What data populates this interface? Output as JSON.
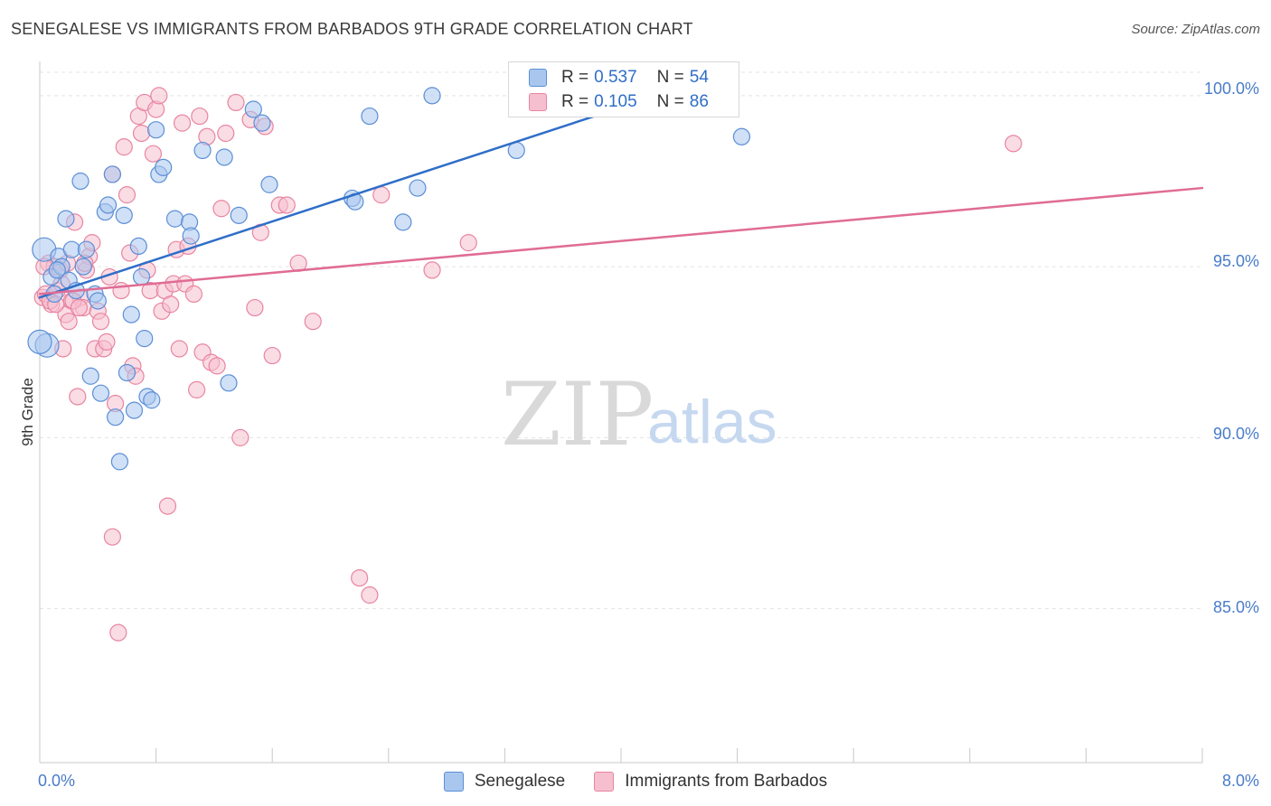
{
  "header": {
    "title": "SENEGALESE VS IMMIGRANTS FROM BARBADOS 9TH GRADE CORRELATION CHART",
    "source": "Source: ZipAtlas.com"
  },
  "watermark": {
    "zip": "ZIP",
    "atlas": "atlas"
  },
  "legend_top": [
    {
      "r_label": "R =",
      "r_value": "0.537",
      "n_label": "N =",
      "n_value": "54"
    },
    {
      "r_label": "R =",
      "r_value": "0.105",
      "n_label": "N =",
      "n_value": "86"
    }
  ],
  "legend_bottom": [
    "Senegalese",
    "Immigrants from Barbados"
  ],
  "colors": {
    "blue_fill": "#a9c7ee",
    "blue_stroke": "#5b8fd6",
    "blue_line": "#2f6ec8",
    "pink_fill": "#f6bfd0",
    "pink_stroke": "#e8859f",
    "pink_line": "#e06c95",
    "tick": "#4a7cc9",
    "grid": "#e3e3e3"
  },
  "chart_data": {
    "type": "scatter",
    "title": "SENEGALESE VS IMMIGRANTS FROM BARBADOS 9TH GRADE CORRELATION CHART",
    "xlabel": "",
    "ylabel": "9th Grade",
    "xlim": [
      0.0,
      8.0
    ],
    "ylim": [
      80.5,
      101.0
    ],
    "x_tick_labels": [
      {
        "value": 0.0,
        "label": "0.0%"
      },
      {
        "value": 8.0,
        "label": "8.0%"
      }
    ],
    "y_ticks": [
      {
        "value": 100.0,
        "label": "100.0%"
      },
      {
        "value": 95.0,
        "label": "95.0%"
      },
      {
        "value": 90.0,
        "label": "90.0%"
      },
      {
        "value": 85.0,
        "label": "85.0%"
      }
    ],
    "series": [
      {
        "name": "Senegalese",
        "r": 0.537,
        "n": 54,
        "trend": {
          "x0": 0.0,
          "y0": 94.1,
          "x1": 4.25,
          "y1": 100.0
        },
        "points": [
          [
            0.03,
            95.5
          ],
          [
            0.05,
            92.7
          ],
          [
            0.08,
            94.7
          ],
          [
            0.1,
            94.2
          ],
          [
            0.13,
            95.3
          ],
          [
            0.15,
            95.0
          ],
          [
            0.18,
            96.4
          ],
          [
            0.2,
            94.6
          ],
          [
            0.22,
            95.5
          ],
          [
            0.25,
            94.3
          ],
          [
            0.28,
            97.5
          ],
          [
            0.3,
            95.0
          ],
          [
            0.32,
            95.5
          ],
          [
            0.35,
            91.8
          ],
          [
            0.38,
            94.2
          ],
          [
            0.4,
            94.0
          ],
          [
            0.42,
            91.3
          ],
          [
            0.45,
            96.6
          ],
          [
            0.47,
            96.8
          ],
          [
            0.5,
            97.7
          ],
          [
            0.52,
            90.6
          ],
          [
            0.55,
            89.3
          ],
          [
            0.58,
            96.5
          ],
          [
            0.6,
            91.9
          ],
          [
            0.63,
            93.6
          ],
          [
            0.65,
            90.8
          ],
          [
            0.68,
            95.6
          ],
          [
            0.7,
            94.7
          ],
          [
            0.72,
            92.9
          ],
          [
            0.74,
            91.2
          ],
          [
            0.77,
            91.1
          ],
          [
            0.8,
            99.0
          ],
          [
            0.82,
            97.7
          ],
          [
            0.85,
            97.9
          ],
          [
            0.93,
            96.4
          ],
          [
            1.03,
            96.3
          ],
          [
            1.04,
            95.9
          ],
          [
            1.12,
            98.4
          ],
          [
            1.27,
            98.2
          ],
          [
            1.3,
            91.6
          ],
          [
            1.37,
            96.5
          ],
          [
            1.47,
            99.6
          ],
          [
            1.53,
            99.2
          ],
          [
            1.58,
            97.4
          ],
          [
            2.15,
            97.0
          ],
          [
            2.17,
            96.9
          ],
          [
            2.27,
            99.4
          ],
          [
            2.5,
            96.3
          ],
          [
            2.6,
            97.3
          ],
          [
            2.7,
            100.0
          ],
          [
            3.28,
            98.4
          ],
          [
            4.83,
            98.8
          ],
          [
            0.0,
            92.8
          ],
          [
            0.12,
            94.9
          ]
        ]
      },
      {
        "name": "Immigrants from Barbados",
        "r": 0.105,
        "n": 86,
        "trend": {
          "x0": 0.0,
          "y0": 94.2,
          "x1": 8.0,
          "y1": 97.3
        },
        "points": [
          [
            0.02,
            94.1
          ],
          [
            0.04,
            94.2
          ],
          [
            0.06,
            95.1
          ],
          [
            0.08,
            93.9
          ],
          [
            0.1,
            95.0
          ],
          [
            0.12,
            94.3
          ],
          [
            0.14,
            94.9
          ],
          [
            0.16,
            92.6
          ],
          [
            0.18,
            93.6
          ],
          [
            0.2,
            93.4
          ],
          [
            0.22,
            94.0
          ],
          [
            0.24,
            96.3
          ],
          [
            0.26,
            91.2
          ],
          [
            0.28,
            94.1
          ],
          [
            0.3,
            93.8
          ],
          [
            0.32,
            94.9
          ],
          [
            0.34,
            95.3
          ],
          [
            0.36,
            95.7
          ],
          [
            0.38,
            92.6
          ],
          [
            0.4,
            93.7
          ],
          [
            0.42,
            93.4
          ],
          [
            0.44,
            92.6
          ],
          [
            0.46,
            92.8
          ],
          [
            0.48,
            94.7
          ],
          [
            0.5,
            97.7
          ],
          [
            0.52,
            91.0
          ],
          [
            0.54,
            84.3
          ],
          [
            0.56,
            94.3
          ],
          [
            0.58,
            98.5
          ],
          [
            0.6,
            97.1
          ],
          [
            0.62,
            95.4
          ],
          [
            0.64,
            92.1
          ],
          [
            0.66,
            91.8
          ],
          [
            0.68,
            99.4
          ],
          [
            0.7,
            98.9
          ],
          [
            0.72,
            99.8
          ],
          [
            0.74,
            94.9
          ],
          [
            0.76,
            94.3
          ],
          [
            0.78,
            98.3
          ],
          [
            0.8,
            99.6
          ],
          [
            0.82,
            100.0
          ],
          [
            0.84,
            93.7
          ],
          [
            0.86,
            94.3
          ],
          [
            0.88,
            88.0
          ],
          [
            0.9,
            93.9
          ],
          [
            0.92,
            94.5
          ],
          [
            0.94,
            95.5
          ],
          [
            0.96,
            92.6
          ],
          [
            0.98,
            99.2
          ],
          [
            1.0,
            94.5
          ],
          [
            1.02,
            95.6
          ],
          [
            1.06,
            94.2
          ],
          [
            1.08,
            91.4
          ],
          [
            1.1,
            99.4
          ],
          [
            1.12,
            92.5
          ],
          [
            1.15,
            98.8
          ],
          [
            1.18,
            92.2
          ],
          [
            1.22,
            92.1
          ],
          [
            1.25,
            96.7
          ],
          [
            1.28,
            98.9
          ],
          [
            1.35,
            99.8
          ],
          [
            1.38,
            90.0
          ],
          [
            1.45,
            99.3
          ],
          [
            1.48,
            93.8
          ],
          [
            1.52,
            96.0
          ],
          [
            1.55,
            99.1
          ],
          [
            1.6,
            92.4
          ],
          [
            1.65,
            96.8
          ],
          [
            1.7,
            96.8
          ],
          [
            1.78,
            95.1
          ],
          [
            1.88,
            93.4
          ],
          [
            2.2,
            85.9
          ],
          [
            2.27,
            85.4
          ],
          [
            2.35,
            97.1
          ],
          [
            2.7,
            94.9
          ],
          [
            2.95,
            95.7
          ],
          [
            6.7,
            98.6
          ],
          [
            0.03,
            95.0
          ],
          [
            0.07,
            94.0
          ],
          [
            0.11,
            93.9
          ],
          [
            0.15,
            94.5
          ],
          [
            0.19,
            95.1
          ],
          [
            0.23,
            94.0
          ],
          [
            0.27,
            93.8
          ],
          [
            0.31,
            95.1
          ],
          [
            0.5,
            87.1
          ]
        ]
      }
    ]
  }
}
